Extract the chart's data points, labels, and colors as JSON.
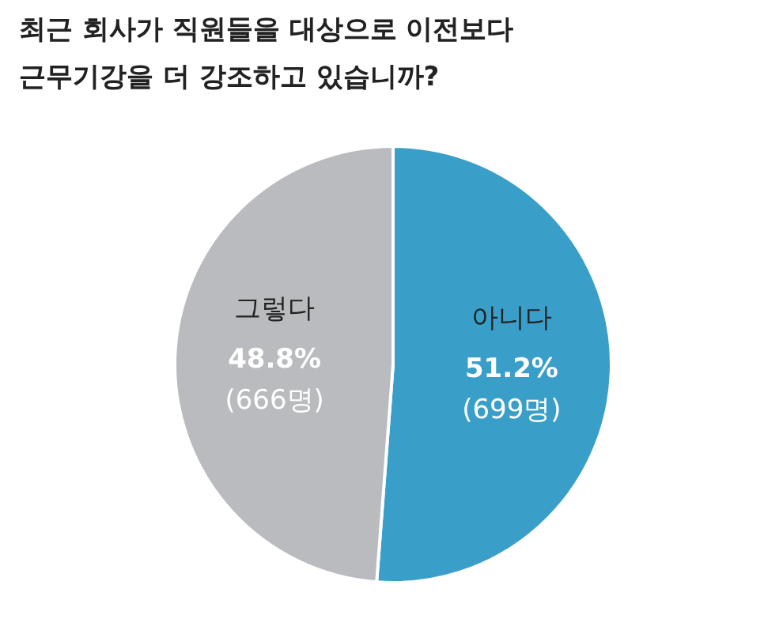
{
  "chart_data": {
    "type": "pie",
    "title": "최근 회사가 직원들을 대상으로 이전보다 근무기강을 더 강조하고 있습니까?",
    "categories": [
      "아니다",
      "그렇다"
    ],
    "values": [
      51.2,
      48.8
    ],
    "colors": [
      "#3a9fc8",
      "#b9bbbe"
    ],
    "value_labels": [
      "51.2%",
      "48.8%"
    ],
    "annotations": [
      "(699명)",
      "(666명)"
    ],
    "legend": false
  }
}
